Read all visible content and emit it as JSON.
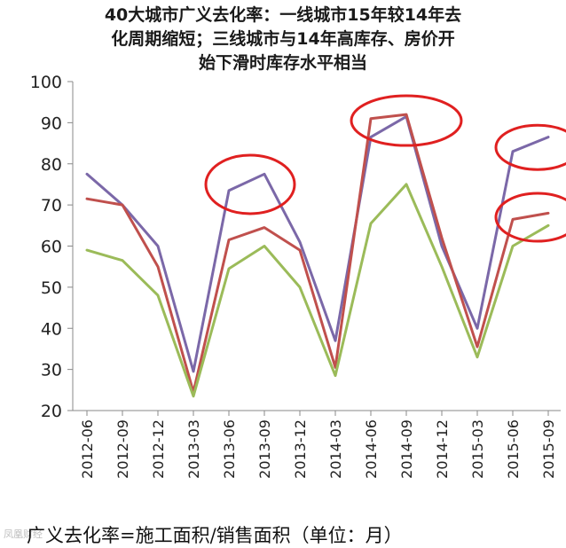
{
  "chart_data": {
    "type": "line",
    "title_lines": [
      "40大城市广义去化率：一线城市15年较14年去",
      "化周期缩短；三线城市与14年高库存、房价开",
      "始下滑时库存水平相当"
    ],
    "x": [
      "2012-06",
      "2012-09",
      "2012-12",
      "2013-03",
      "2013-06",
      "2013-09",
      "2013-12",
      "2014-03",
      "2014-06",
      "2014-09",
      "2014-12",
      "2015-03",
      "2015-06",
      "2015-09"
    ],
    "series": [
      {
        "color": "#7b68a8",
        "values": [
          77.5,
          70,
          60,
          29.5,
          73.5,
          77.5,
          61,
          37,
          86.5,
          91.5,
          60,
          40,
          83,
          86.5
        ]
      },
      {
        "color": "#c0504d",
        "values": [
          71.5,
          70,
          55,
          24.5,
          61.5,
          64.5,
          59,
          30.5,
          91,
          92,
          62,
          35.5,
          66.5,
          68
        ]
      },
      {
        "color": "#9bbb59",
        "values": [
          59,
          56.5,
          48,
          23.5,
          54.5,
          60,
          50,
          28.5,
          65.5,
          75,
          55,
          33,
          60,
          65
        ]
      }
    ],
    "ylim": [
      20,
      100
    ],
    "yticks": [
      20,
      30,
      40,
      50,
      60,
      70,
      80,
      90,
      100
    ],
    "grid": false,
    "legend": "none",
    "highlight_ellipse_color": "#e02020"
  },
  "footnote": "广义去化率=施工面积/销售面积（单位：月）",
  "watermark": "凤凰财经"
}
